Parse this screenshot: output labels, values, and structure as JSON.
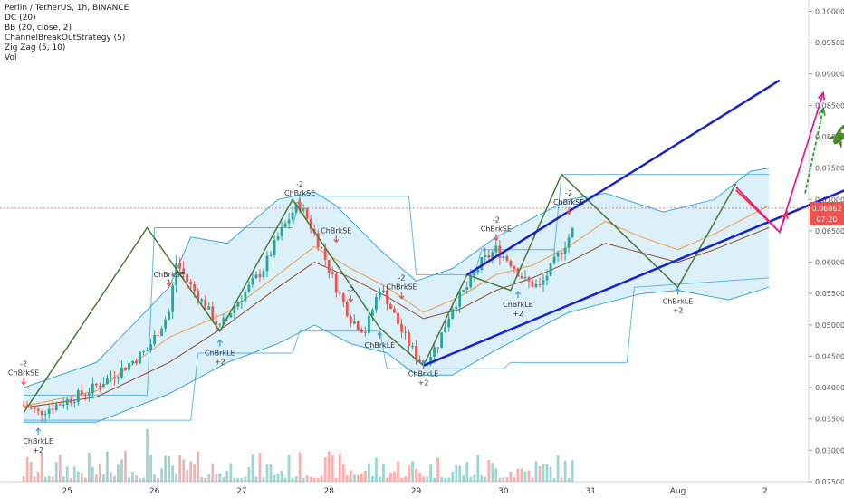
{
  "legend": {
    "symbol": "Perlin / TetherUS, 1h, BINANCE",
    "indicators": [
      "DC (20)",
      "BB (20, close, 2)",
      "ChannelBreakOutStrategy (5)",
      "Zig Zag (5, 10)",
      "Vol"
    ]
  },
  "price_label": {
    "value": "0.06862",
    "countdown": "07:20"
  },
  "colors": {
    "up": "#26a69a",
    "down": "#ef5350",
    "bb_fill": "#bfe3f5",
    "bb_line": "#3fa7d6",
    "basis": "#8d4a2a",
    "orange": "#f2994a",
    "zigzag": "#4a7a35",
    "channel": "#1a1fd1",
    "arrow_red": "#ff2a2a",
    "arrow_magenta": "#e0209a",
    "arrow_green": "#2e9e2e",
    "price_line": "#ef5350"
  },
  "chart_data": {
    "type": "candlestick",
    "y_ticks": [
      "0.10000",
      "0.09500",
      "0.09000",
      "0.08500",
      "0.08000",
      "0.07500",
      "0.07000",
      "0.06500",
      "0.06000",
      "0.05500",
      "0.05000",
      "0.04500",
      "0.04000",
      "0.03500",
      "0.03000",
      "0.02500"
    ],
    "ylim": [
      0.025,
      0.1018
    ],
    "x_ticks": [
      "25",
      "26",
      "27",
      "28",
      "29",
      "30",
      "31",
      "Aug",
      "2"
    ],
    "x_hours": [
      12,
      36,
      60,
      84,
      108,
      132,
      156,
      180,
      204
    ],
    "xlim": [
      -6.5,
      215
    ],
    "last_candle_hour": 151,
    "candle_path": [
      [
        0,
        0.0372
      ],
      [
        4,
        0.036
      ],
      [
        10,
        0.0375
      ],
      [
        18,
        0.0395
      ],
      [
        26,
        0.0425
      ],
      [
        34,
        0.046
      ],
      [
        40,
        0.052
      ],
      [
        42,
        0.06
      ],
      [
        45,
        0.057
      ],
      [
        50,
        0.053
      ],
      [
        54,
        0.0495
      ],
      [
        58,
        0.053
      ],
      [
        62,
        0.056
      ],
      [
        66,
        0.059
      ],
      [
        70,
        0.064
      ],
      [
        74,
        0.068
      ],
      [
        76,
        0.069
      ],
      [
        78,
        0.067
      ],
      [
        82,
        0.062
      ],
      [
        86,
        0.056
      ],
      [
        90,
        0.051
      ],
      [
        94,
        0.049
      ],
      [
        98,
        0.056
      ],
      [
        100,
        0.054
      ],
      [
        104,
        0.049
      ],
      [
        108,
        0.045
      ],
      [
        110,
        0.0438
      ],
      [
        114,
        0.047
      ],
      [
        118,
        0.053
      ],
      [
        122,
        0.056
      ],
      [
        126,
        0.06
      ],
      [
        130,
        0.062
      ],
      [
        134,
        0.06
      ],
      [
        138,
        0.057
      ],
      [
        142,
        0.056
      ],
      [
        146,
        0.06
      ],
      [
        150,
        0.064
      ],
      [
        154,
        0.068
      ],
      [
        158,
        0.067
      ],
      [
        162,
        0.065
      ],
      [
        166,
        0.064
      ],
      [
        170,
        0.062
      ],
      [
        174,
        0.059
      ],
      [
        178,
        0.0575
      ],
      [
        182,
        0.061
      ],
      [
        186,
        0.065
      ],
      [
        190,
        0.069
      ],
      [
        194,
        0.0715
      ],
      [
        198,
        0.0705
      ],
      [
        202,
        0.069
      ],
      [
        205,
        0.0686
      ]
    ],
    "bb_upper": [
      [
        0,
        0.04
      ],
      [
        20,
        0.044
      ],
      [
        40,
        0.056
      ],
      [
        46,
        0.064
      ],
      [
        56,
        0.063
      ],
      [
        70,
        0.07
      ],
      [
        80,
        0.0712
      ],
      [
        86,
        0.069
      ],
      [
        98,
        0.062
      ],
      [
        108,
        0.057
      ],
      [
        118,
        0.059
      ],
      [
        130,
        0.064
      ],
      [
        150,
        0.07
      ],
      [
        160,
        0.071
      ],
      [
        176,
        0.068
      ],
      [
        190,
        0.07
      ],
      [
        200,
        0.0745
      ],
      [
        205,
        0.075
      ]
    ],
    "bb_lower": [
      [
        0,
        0.0345
      ],
      [
        20,
        0.0345
      ],
      [
        40,
        0.039
      ],
      [
        56,
        0.044
      ],
      [
        70,
        0.047
      ],
      [
        80,
        0.05
      ],
      [
        90,
        0.047
      ],
      [
        100,
        0.0455
      ],
      [
        108,
        0.042
      ],
      [
        118,
        0.042
      ],
      [
        130,
        0.046
      ],
      [
        150,
        0.052
      ],
      [
        170,
        0.055
      ],
      [
        180,
        0.0555
      ],
      [
        194,
        0.054
      ],
      [
        205,
        0.056
      ]
    ],
    "dc_upper": [
      [
        0,
        0.0388
      ],
      [
        34,
        0.0388
      ],
      [
        36,
        0.0655
      ],
      [
        74,
        0.0655
      ],
      [
        76,
        0.0705
      ],
      [
        106,
        0.0705
      ],
      [
        108,
        0.058
      ],
      [
        124,
        0.058
      ],
      [
        126,
        0.062
      ],
      [
        146,
        0.062
      ],
      [
        148,
        0.074
      ],
      [
        182,
        0.074
      ],
      [
        184,
        0.074
      ],
      [
        205,
        0.074
      ]
    ],
    "dc_lower": [
      [
        0,
        0.0348
      ],
      [
        46,
        0.0348
      ],
      [
        48,
        0.0455
      ],
      [
        74,
        0.0455
      ],
      [
        76,
        0.049
      ],
      [
        98,
        0.049
      ],
      [
        100,
        0.043
      ],
      [
        132,
        0.043
      ],
      [
        134,
        0.044
      ],
      [
        166,
        0.044
      ],
      [
        168,
        0.056
      ],
      [
        205,
        0.0575
      ]
    ],
    "basis": [
      [
        0,
        0.0368
      ],
      [
        20,
        0.0385
      ],
      [
        40,
        0.044
      ],
      [
        56,
        0.05
      ],
      [
        70,
        0.056
      ],
      [
        80,
        0.06
      ],
      [
        90,
        0.0575
      ],
      [
        100,
        0.0545
      ],
      [
        110,
        0.051
      ],
      [
        120,
        0.0525
      ],
      [
        130,
        0.0555
      ],
      [
        140,
        0.0575
      ],
      [
        150,
        0.06
      ],
      [
        160,
        0.063
      ],
      [
        170,
        0.0615
      ],
      [
        180,
        0.06
      ],
      [
        190,
        0.062
      ],
      [
        205,
        0.0655
      ]
    ],
    "orange": [
      [
        0,
        0.037
      ],
      [
        20,
        0.0395
      ],
      [
        40,
        0.048
      ],
      [
        56,
        0.052
      ],
      [
        70,
        0.058
      ],
      [
        80,
        0.0625
      ],
      [
        90,
        0.059
      ],
      [
        100,
        0.056
      ],
      [
        110,
        0.052
      ],
      [
        120,
        0.0545
      ],
      [
        130,
        0.058
      ],
      [
        140,
        0.0595
      ],
      [
        150,
        0.0625
      ],
      [
        160,
        0.0665
      ],
      [
        170,
        0.064
      ],
      [
        180,
        0.062
      ],
      [
        190,
        0.0645
      ],
      [
        205,
        0.069
      ]
    ],
    "zigzag": [
      [
        0,
        0.036
      ],
      [
        34,
        0.0655
      ],
      [
        54,
        0.049
      ],
      [
        74,
        0.07
      ],
      [
        98,
        0.0495
      ],
      [
        110,
        0.0435
      ],
      [
        122,
        0.058
      ],
      [
        134,
        0.0555
      ],
      [
        148,
        0.074
      ],
      [
        180,
        0.056
      ],
      [
        196,
        0.0725
      ]
    ],
    "channel_upper": [
      [
        122,
        0.058
      ],
      [
        208,
        0.089
      ]
    ],
    "channel_lower": [
      [
        110,
        0.0435
      ],
      [
        229,
        0.0722
      ]
    ],
    "arrows": [
      {
        "kind": "red",
        "pts": [
          [
            196,
            0.0715
          ],
          [
            208,
            0.0648
          ],
          [
            210,
            0.068
          ]
        ]
      },
      {
        "kind": "magenta",
        "pts": [
          [
            196,
            0.072
          ],
          [
            208,
            0.0648
          ],
          [
            220,
            0.087
          ]
        ]
      },
      {
        "kind": "green",
        "pts": [
          [
            215,
            0.071
          ],
          [
            220,
            0.0845
          ]
        ]
      }
    ],
    "rocket_at": [
      225,
      0.0805
    ],
    "signals": [
      {
        "h": 0,
        "y": 0.0418,
        "text": [
          "-2",
          "ChBrkSE"
        ],
        "dir": "down"
      },
      {
        "h": 4,
        "y": 0.0322,
        "text": [
          "ChBrkLE",
          "+2"
        ],
        "dir": "up"
      },
      {
        "h": 40,
        "y": 0.0575,
        "text": [
          "ChBrkSE"
        ],
        "dir": "down"
      },
      {
        "h": 54,
        "y": 0.0463,
        "text": [
          "ChBrkLE",
          "+2"
        ],
        "dir": "up"
      },
      {
        "h": 76,
        "y": 0.0705,
        "text": [
          "-2",
          "ChBrkSE"
        ],
        "dir": "down"
      },
      {
        "h": 86,
        "y": 0.0645,
        "text": [
          "ChBrkSE"
        ],
        "dir": "down"
      },
      {
        "h": 90,
        "y": 0.055,
        "text": [
          "-2"
        ],
        "dir": "down"
      },
      {
        "h": 98,
        "y": 0.0475,
        "text": [
          "ChBrkLE"
        ],
        "dir": "up"
      },
      {
        "h": 104,
        "y": 0.0555,
        "text": [
          "-2",
          "ChBrkSE"
        ],
        "dir": "down"
      },
      {
        "h": 110,
        "y": 0.043,
        "text": [
          "ChBrkLE",
          "+2"
        ],
        "dir": "up"
      },
      {
        "h": 130,
        "y": 0.0648,
        "text": [
          "-2",
          "ChBrkSE"
        ],
        "dir": "down"
      },
      {
        "h": 136,
        "y": 0.054,
        "text": [
          "ChBrkLE",
          "+2"
        ],
        "dir": "up"
      },
      {
        "h": 150,
        "y": 0.069,
        "text": [
          "-2",
          "ChBrkSE"
        ],
        "dir": "down"
      },
      {
        "h": 180,
        "y": 0.0545,
        "text": [
          "ChBrkLE",
          "+2"
        ],
        "dir": "up"
      }
    ]
  }
}
